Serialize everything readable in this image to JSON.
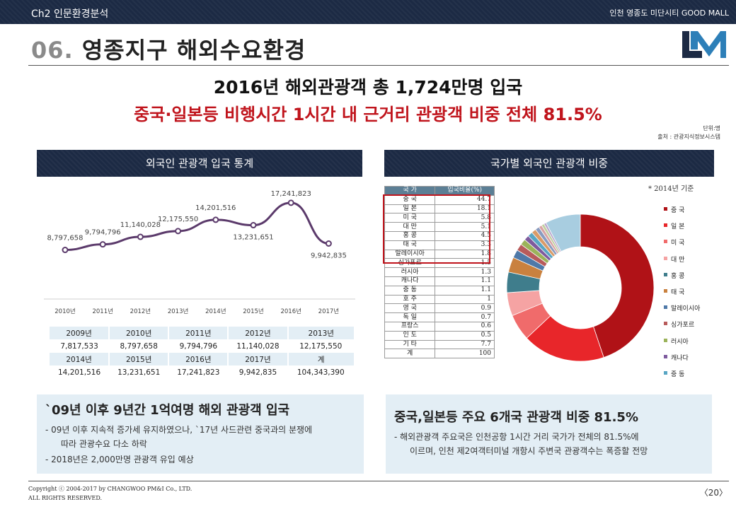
{
  "header": {
    "chapter": "Ch2 인문환경분석",
    "project": "인천 영종도 미단시티 GOOD MALL"
  },
  "title": {
    "number": "06.",
    "text": "영종지구 해외수요환경"
  },
  "headline": {
    "line1": "2016년 해외관광객 총 1,724만명 입국",
    "line2": "중국·일본등 비행시간 1시간 내 근거리 관광객 비중 전체 81.5%"
  },
  "unit_note": {
    "unit": "단위:명",
    "source": "출처 : 관광지식정보시스템"
  },
  "left_panel": {
    "title": "외국인 관광객 입국 통계"
  },
  "right_panel": {
    "title": "국가별 외국인 관광객 비중",
    "note": "* 2014년 기준"
  },
  "chart_data": [
    {
      "type": "line",
      "title": "",
      "x": [
        "2010년",
        "2011년",
        "2012년",
        "2013년",
        "2014년",
        "2015년",
        "2016년",
        "2017년"
      ],
      "values": [
        8797658,
        9794796,
        11140028,
        12175550,
        14201516,
        13231651,
        17241823,
        9942835
      ],
      "data_labels": [
        "8,797,658",
        "9,794,796",
        "11,140,028",
        "12,175,550",
        "14,201,516",
        "13,231,651",
        "17,241,823",
        "9,942,835"
      ],
      "ylim": [
        0,
        19000000
      ],
      "grid": false,
      "color": "#5b3a6b"
    },
    {
      "type": "pie",
      "donut": true,
      "categories": [
        "중국",
        "일본",
        "미국",
        "대만",
        "홍콩",
        "태국",
        "말레이시아",
        "싱가포르",
        "러시아",
        "캐나다",
        "중동",
        "호주",
        "영국",
        "독일",
        "프랑스",
        "인도",
        "기타"
      ],
      "values": [
        44.7,
        18.1,
        5.8,
        5.1,
        4.5,
        3.3,
        1.8,
        1.5,
        1.3,
        1.1,
        1.1,
        1,
        0.9,
        0.7,
        0.6,
        0.5,
        7.7
      ],
      "colors": [
        "#b01217",
        "#e8262a",
        "#f06b6b",
        "#f5a3a3",
        "#3f7d8c",
        "#c9813f",
        "#4f79a8",
        "#b85b5b",
        "#9bb35a",
        "#7e5b9e",
        "#58a6c4",
        "#d99b68",
        "#8a9bbf",
        "#d9a3a3",
        "#c0cfa0",
        "#b7a6cc",
        "#a8cde0"
      ],
      "legend": [
        "중 국",
        "일 본",
        "미 국",
        "대 만",
        "홍 콩",
        "태 국",
        "말레이시아",
        "싱가포르",
        "러시아",
        "캐나다",
        "중 동"
      ],
      "legend_position": "right"
    }
  ],
  "year_table": {
    "rows": [
      {
        "headers": [
          "2009년",
          "2010년",
          "2011년",
          "2012년",
          "2013년"
        ],
        "values": [
          "7,817,533",
          "8,797,658",
          "9,794,796",
          "11,140,028",
          "12,175,550"
        ]
      },
      {
        "headers": [
          "2014년",
          "2015년",
          "2016년",
          "2017년",
          "계"
        ],
        "values": [
          "14,201,516",
          "13,231,651",
          "17,241,823",
          "9,942,835",
          "104,343,390"
        ]
      }
    ]
  },
  "country_table": {
    "header": [
      "국 가",
      "입국비율(%)"
    ],
    "rows": [
      [
        "중 국",
        "44.7"
      ],
      [
        "일 본",
        "18.1"
      ],
      [
        "미 국",
        "5.8"
      ],
      [
        "대 만",
        "5.1"
      ],
      [
        "홍 콩",
        "4.5"
      ],
      [
        "태 국",
        "3.3"
      ],
      [
        "말레이시아",
        "1.8"
      ],
      [
        "싱가포르",
        "1.5"
      ],
      [
        "러시아",
        "1.3"
      ],
      [
        "캐나다",
        "1.1"
      ],
      [
        "중 동",
        "1.1"
      ],
      [
        "호 주",
        "1"
      ],
      [
        "영 국",
        "0.9"
      ],
      [
        "독 일",
        "0.7"
      ],
      [
        "프랑스",
        "0.6"
      ],
      [
        "인 도",
        "0.5"
      ],
      [
        "기 타",
        "7.7"
      ],
      [
        "계",
        "100"
      ]
    ]
  },
  "summary_left": {
    "heading": "`09년 이후 9년간 1억여명 해외 관광객 입국",
    "line1": "-  09년 이후 지속적 증가세 유지하였으나, `17년 사드관련 중국과의 분쟁에",
    "line2": "따라 관광수요 다소 하락",
    "line3": "- 2018년은 2,000만명 관광객 유입 예상"
  },
  "summary_right": {
    "heading": "중국,일본등 주요 6개국 관광객 비중 81.5%",
    "line1": "-  해외관광객 주요국은 인천공항 1시간 거리 국가가 전체의 81.5%에",
    "line2": "이르며, 인천 제2여객터미널 개항시 주변국 관광객수는 폭증할 전망"
  },
  "footer": {
    "copyright": "Copyright ⓒ 2004-2017 by CHANGWOO PM&I Co., LTD.",
    "rights": "ALL RIGHTS RESERVED.",
    "page": "〈20〉"
  }
}
